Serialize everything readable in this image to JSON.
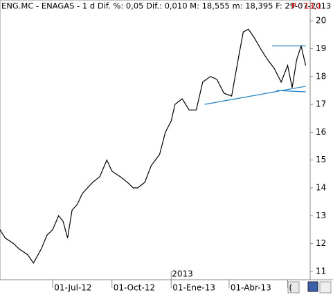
{
  "chart_data": {
    "type": "line",
    "title": "ENG.MC - ENAGAS - 1 d Dif. %: 0,05 Dif.: 0,010 M: 18,555 m: 18,395 F: 29-07-2013",
    "title_extra": "P : 13,1",
    "title_extra_color": "#e00000",
    "year_marker": {
      "x": "2013-01-01",
      "label": "2013"
    },
    "x": [
      "2012-04-10",
      "2012-04-18",
      "2012-05-01",
      "2012-05-10",
      "2012-05-23",
      "2012-06-01",
      "2012-06-13",
      "2012-06-22",
      "2012-07-01",
      "2012-07-10",
      "2012-07-17",
      "2012-07-24",
      "2012-07-31",
      "2012-08-08",
      "2012-08-16",
      "2012-09-01",
      "2012-09-12",
      "2012-09-23",
      "2012-10-01",
      "2012-10-14",
      "2012-10-25",
      "2012-11-03",
      "2012-11-10",
      "2012-11-21",
      "2012-12-01",
      "2012-12-14",
      "2012-12-23",
      "2013-01-01",
      "2013-01-07",
      "2013-01-18",
      "2013-01-29",
      "2013-02-09",
      "2013-02-19",
      "2013-03-03",
      "2013-03-13",
      "2013-03-24",
      "2013-04-05",
      "2013-04-15",
      "2013-04-23",
      "2013-05-01",
      "2013-05-10",
      "2013-05-20",
      "2013-05-31",
      "2013-06-10",
      "2013-06-21",
      "2013-07-01",
      "2013-07-08",
      "2013-07-15",
      "2013-07-22",
      "2013-07-29"
    ],
    "series": [
      {
        "name": "ENG.MC",
        "color": "#000000",
        "values": [
          12.5,
          12.2,
          12.0,
          11.8,
          11.6,
          11.3,
          11.8,
          12.3,
          12.5,
          13.0,
          12.8,
          12.2,
          13.2,
          13.4,
          13.8,
          14.2,
          14.4,
          15.0,
          14.6,
          14.4,
          14.2,
          14.0,
          14.0,
          14.2,
          14.8,
          15.2,
          16.0,
          16.4,
          17.0,
          17.2,
          16.8,
          16.8,
          17.8,
          18.0,
          17.9,
          17.4,
          17.3,
          18.6,
          19.6,
          19.7,
          19.4,
          19.0,
          18.6,
          18.3,
          17.8,
          18.4,
          17.6,
          18.6,
          19.1,
          18.4
        ]
      }
    ],
    "trendlines": [
      {
        "x": [
          "2013-02-22",
          "2013-07-29"
        ],
        "y": [
          17.0,
          17.65
        ],
        "color": "#1a7fc0"
      },
      {
        "x": [
          "2013-06-14",
          "2013-07-29"
        ],
        "y": [
          17.5,
          17.45
        ],
        "color": "#1a7fc0"
      },
      {
        "x": [
          "2013-06-07",
          "2013-07-29"
        ],
        "y": [
          19.1,
          19.1
        ],
        "color": "#1a7fc0"
      }
    ],
    "xlim": [
      "2012-04-10",
      "2013-08-05"
    ],
    "xticks": [
      {
        "value": "2012-07-01",
        "label": "01-Jul-12"
      },
      {
        "value": "2012-10-01",
        "label": "01-Oct-12"
      },
      {
        "value": "2013-01-01",
        "label": "01-Ene-13"
      },
      {
        "value": "2013-04-01",
        "label": "01-Abr-13"
      },
      {
        "value": "2013-07-01",
        "label": "("
      }
    ],
    "ylim": [
      10.7,
      20.75
    ],
    "yticks": [
      11,
      12,
      13,
      14,
      15,
      16,
      17,
      18,
      19,
      20
    ]
  }
}
